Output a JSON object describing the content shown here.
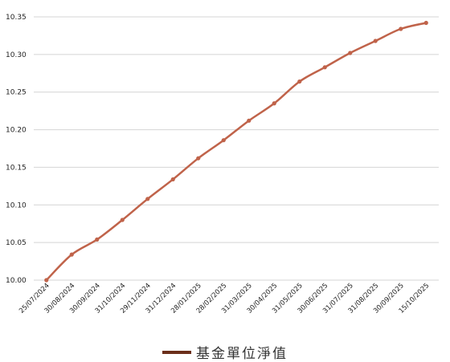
{
  "chart_data": {
    "type": "line",
    "x": [
      "25/07/2024",
      "30/08/2024",
      "30/09/2024",
      "31/10/2024",
      "29/11/2024",
      "31/12/2024",
      "28/01/2025",
      "28/02/2025",
      "31/03/2025",
      "30/04/2025",
      "31/05/2025",
      "30/06/2025",
      "31/07/2025",
      "31/08/2025",
      "30/09/2025",
      "15/10/2025"
    ],
    "series": [
      {
        "name": "基金單位淨值",
        "color": "#C0634A",
        "values": [
          10.0,
          10.034,
          10.054,
          10.08,
          10.108,
          10.134,
          10.162,
          10.186,
          10.212,
          10.235,
          10.264,
          10.283,
          10.302,
          10.318,
          10.334,
          10.342
        ]
      }
    ],
    "ylim": [
      10.0,
      10.35
    ],
    "yticks": [
      "10.00",
      "10.05",
      "10.10",
      "10.15",
      "10.20",
      "10.25",
      "10.30",
      "10.35"
    ],
    "grid": true,
    "legend": "bottom-center",
    "legend_swatch_color": "#6B2E1A",
    "title": "",
    "xlabel": "",
    "ylabel": ""
  }
}
